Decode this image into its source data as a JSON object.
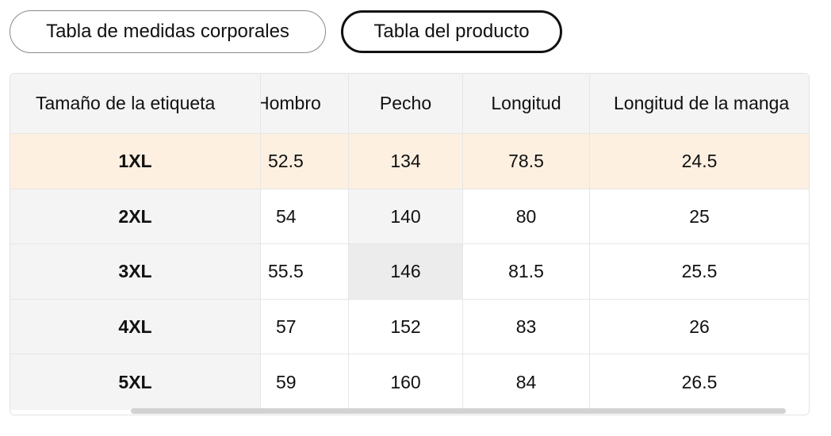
{
  "tabs": [
    {
      "label": "Tabla de medidas corporales",
      "active": false
    },
    {
      "label": "Tabla del producto",
      "active": true
    }
  ],
  "table": {
    "columns": [
      "Tamaño de la etiqueta",
      "Hombro",
      "Pecho",
      "Longitud",
      "Longitud de la manga"
    ],
    "rows": [
      [
        "1XL",
        "52.5",
        "134",
        "78.5",
        "24.5"
      ],
      [
        "2XL",
        "54",
        "140",
        "80",
        "25"
      ],
      [
        "3XL",
        "55.5",
        "146",
        "81.5",
        "25.5"
      ],
      [
        "4XL",
        "57",
        "152",
        "83",
        "26"
      ],
      [
        "5XL",
        "59",
        "160",
        "84",
        "26.5"
      ]
    ]
  },
  "colors": {
    "highlight_row": "#fdf0e1",
    "first_column_bg": "#f4f4f4",
    "hover_cell": "#ececec"
  }
}
